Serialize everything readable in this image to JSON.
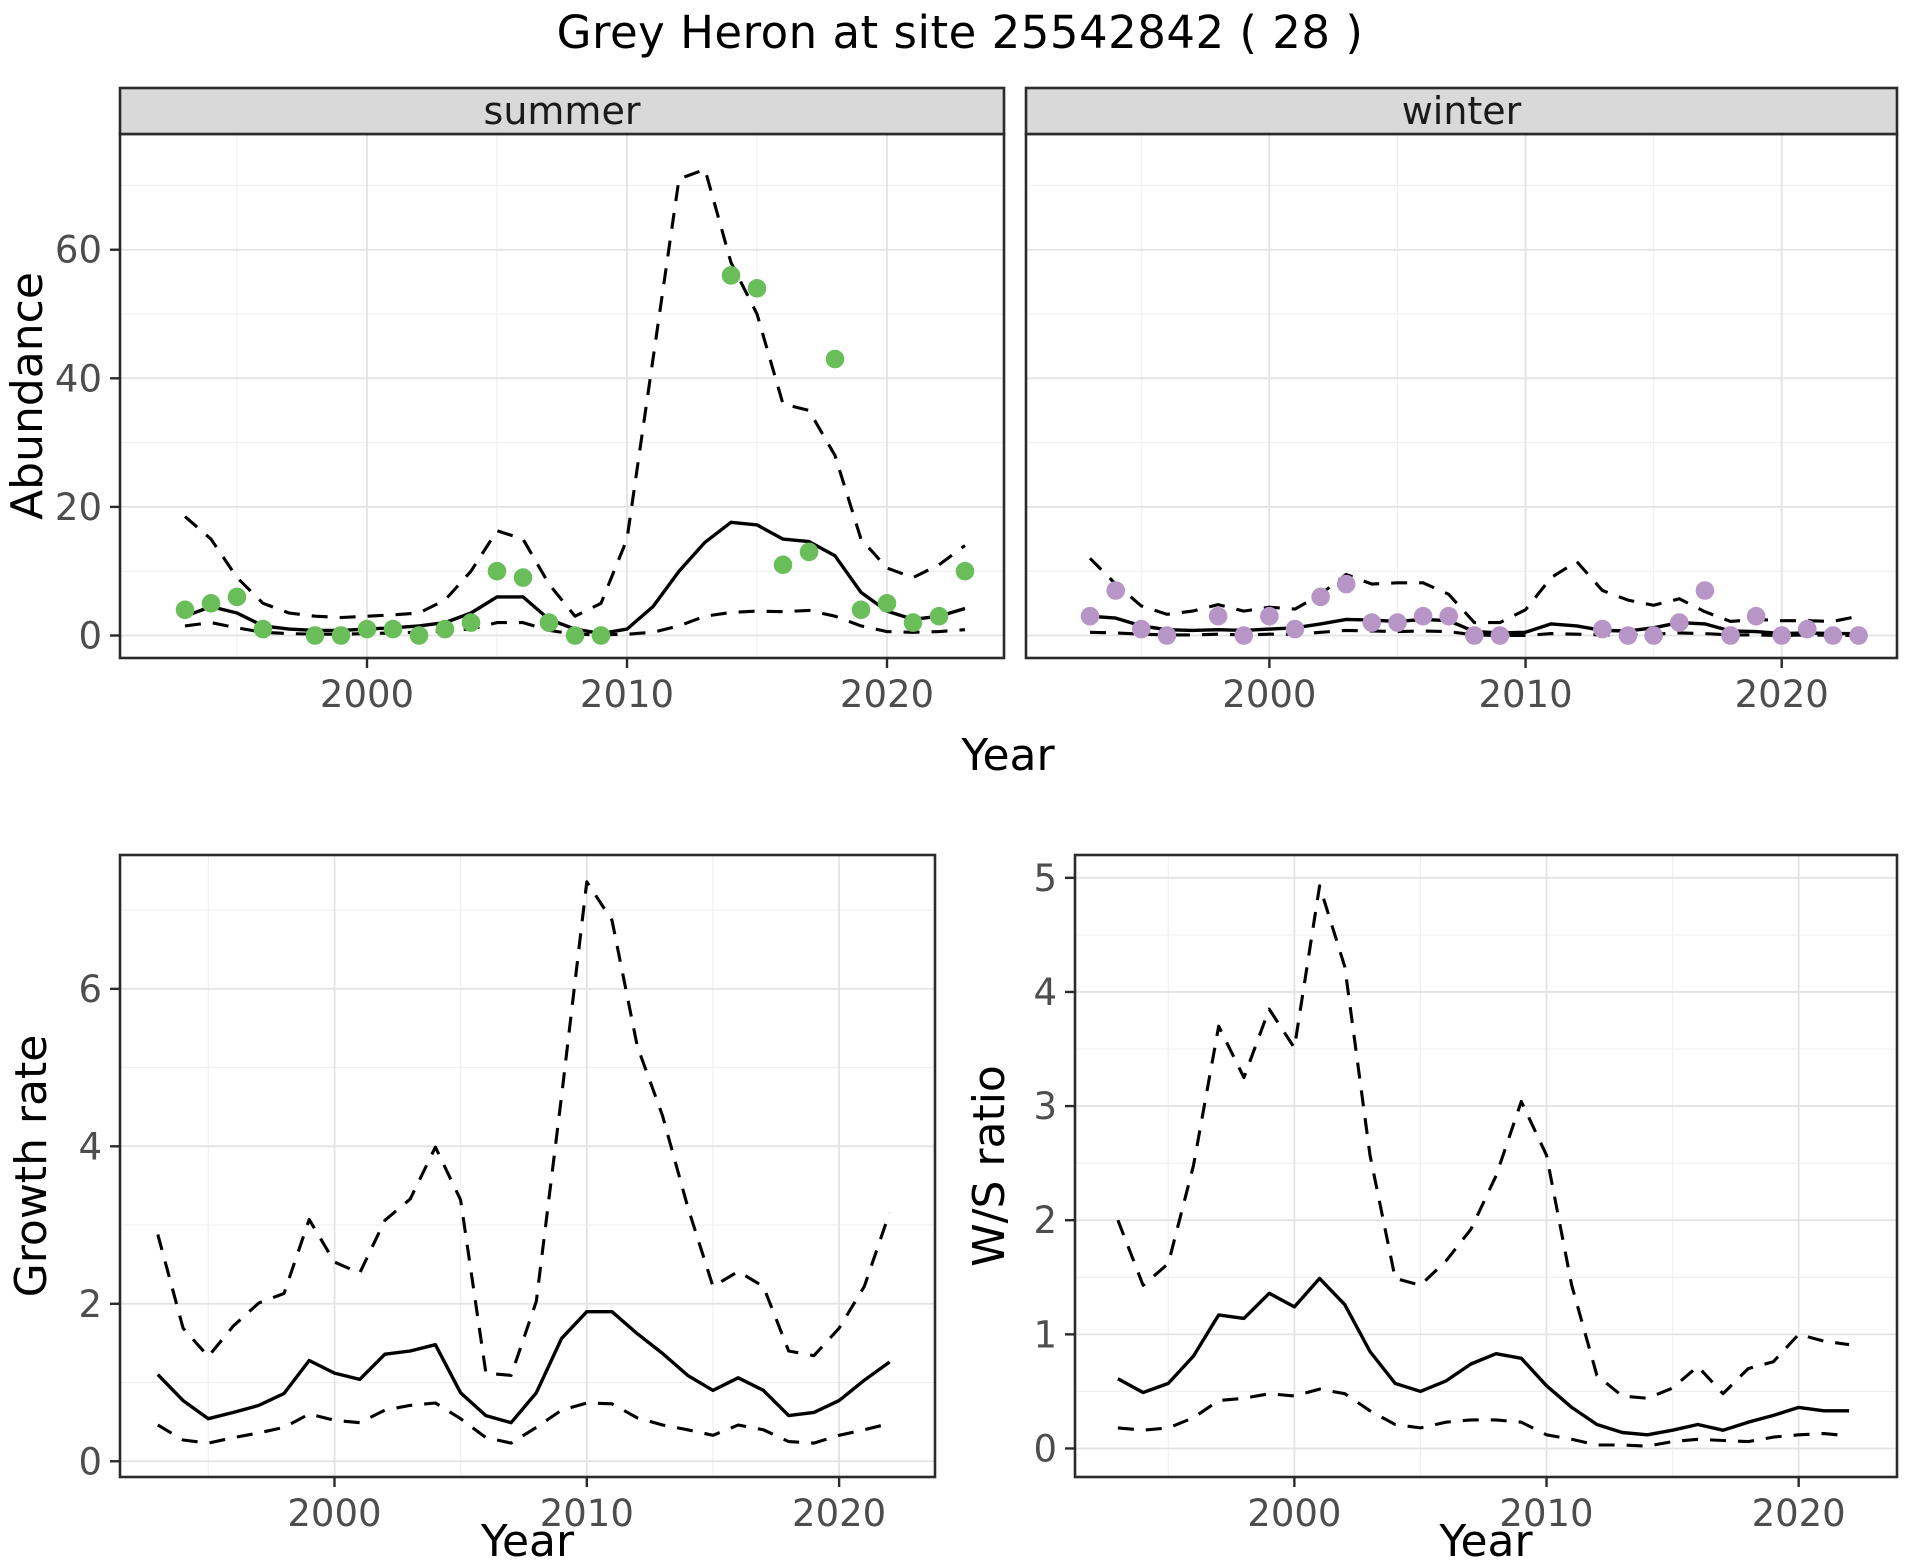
{
  "title": "Grey Heron at site 25542842 ( 28 )",
  "colors": {
    "summer_point": "#69BE5A",
    "winter_point": "#B795C6",
    "line": "#000000",
    "strip_bg": "#D9D9D9",
    "strip_text": "#1A1A1A",
    "grid_major": "#E3E3E3",
    "grid_minor": "#EFEFEF",
    "panel_border": "#2B2B2B",
    "tick_text": "#4D4D4D",
    "panel_bg": "#FFFFFF"
  },
  "chart_data": [
    {
      "id": "abundance_summer",
      "type": "line",
      "facet_label": "summer",
      "ylabel": "Abundance",
      "xlabel": "Year",
      "xlim": [
        1990.5,
        2024.5
      ],
      "ylim": [
        -3.5,
        78
      ],
      "xticks": [
        2000,
        2010,
        2020
      ],
      "xminor": [
        1995,
        2005,
        2015
      ],
      "yticks": [
        0,
        20,
        40,
        60
      ],
      "yminor": [
        10,
        30,
        50,
        70
      ],
      "grid": true,
      "legend_position": "none",
      "x": [
        1993,
        1994,
        1995,
        1996,
        1997,
        1998,
        1999,
        2000,
        2001,
        2002,
        2003,
        2004,
        2005,
        2006,
        2007,
        2008,
        2009,
        2010,
        2011,
        2012,
        2013,
        2014,
        2015,
        2016,
        2017,
        2018,
        2019,
        2020,
        2021,
        2022,
        2023
      ],
      "series": [
        {
          "name": "fit",
          "style": "solid",
          "values": [
            3,
            4.5,
            3.5,
            1.5,
            1,
            0.8,
            0.8,
            1,
            1.2,
            1.5,
            2,
            3.5,
            6,
            6,
            2.5,
            1,
            0.3,
            1,
            4.5,
            10,
            14.5,
            17.6,
            17.2,
            15,
            14.6,
            12.4,
            6.7,
            3.8,
            2.5,
            3,
            4.2
          ]
        },
        {
          "name": "upper_ci",
          "style": "dashed",
          "values": [
            18.5,
            15,
            9,
            5,
            3.5,
            3,
            2.8,
            3,
            3.2,
            3.5,
            5.5,
            10,
            16.3,
            15,
            8,
            3,
            5,
            15,
            43,
            71,
            72.5,
            58,
            50,
            36,
            35,
            28,
            15,
            10.5,
            9,
            11,
            14
          ]
        },
        {
          "name": "lower_ci",
          "style": "dashed",
          "values": [
            1.5,
            2,
            1.2,
            0.5,
            0.3,
            0.2,
            0.2,
            0.3,
            0.4,
            0.5,
            0.7,
            1,
            2,
            2,
            0.8,
            0.2,
            0.1,
            0.2,
            0.5,
            1.5,
            3,
            3.6,
            3.8,
            3.7,
            3.9,
            3,
            1.5,
            0.6,
            0.5,
            0.6,
            0.9
          ]
        }
      ],
      "points": {
        "x": [
          1993,
          1994,
          1995,
          1996,
          1998,
          1999,
          2000,
          2001,
          2002,
          2003,
          2004,
          2005,
          2006,
          2007,
          2008,
          2009,
          2014,
          2015,
          2016,
          2017,
          2018,
          2019,
          2020,
          2021,
          2022,
          2023
        ],
        "y": [
          4,
          5,
          6,
          1,
          0,
          0,
          1,
          1,
          0,
          1,
          2,
          10,
          9,
          2,
          0,
          0,
          56,
          54,
          11,
          13,
          43,
          4,
          5,
          2,
          3,
          10
        ],
        "color_key": "summer_point"
      }
    },
    {
      "id": "abundance_winter",
      "type": "line",
      "facet_label": "winter",
      "ylabel": "Abundance",
      "xlabel": "Year",
      "xlim": [
        1990.5,
        2024.5
      ],
      "ylim": [
        -3.5,
        78
      ],
      "xticks": [
        2000,
        2010,
        2020
      ],
      "xminor": [
        1995,
        2005,
        2015
      ],
      "yticks": [
        0,
        20,
        40,
        60
      ],
      "yminor": [
        10,
        30,
        50,
        70
      ],
      "grid": true,
      "legend_position": "none",
      "x": [
        1993,
        1994,
        1995,
        1996,
        1997,
        1998,
        1999,
        2000,
        2001,
        2002,
        2003,
        2004,
        2005,
        2006,
        2007,
        2008,
        2009,
        2010,
        2011,
        2012,
        2013,
        2014,
        2015,
        2016,
        2017,
        2018,
        2019,
        2020,
        2021,
        2022,
        2023
      ],
      "series": [
        {
          "name": "fit",
          "style": "solid",
          "values": [
            3,
            2.7,
            1.5,
            0.9,
            0.8,
            0.9,
            0.8,
            1,
            1.2,
            1.8,
            2.5,
            2.4,
            2.2,
            2.5,
            2.3,
            0.6,
            0.4,
            0.5,
            1.8,
            1.5,
            0.8,
            0.7,
            1.2,
            2,
            1.8,
            0.7,
            0.6,
            0.3,
            0.4,
            0.3,
            0.3
          ]
        },
        {
          "name": "upper_ci",
          "style": "dashed",
          "values": [
            12,
            8,
            4.6,
            3.3,
            3.8,
            4.8,
            3.8,
            4.4,
            4.1,
            6.4,
            9.5,
            8,
            8.2,
            8.2,
            6.4,
            2,
            2,
            4,
            9,
            11.5,
            7,
            5.5,
            4.7,
            5.7,
            3.7,
            2.2,
            2.5,
            2.3,
            2.3,
            2.2,
            3
          ]
        },
        {
          "name": "lower_ci",
          "style": "dashed",
          "values": [
            0.5,
            0.4,
            0.2,
            0.1,
            0.1,
            0.2,
            0.1,
            0.2,
            0.2,
            0.5,
            0.8,
            0.7,
            0.6,
            0.7,
            0.6,
            0.1,
            0,
            0,
            0.3,
            0.2,
            0.1,
            0.1,
            0.2,
            0.4,
            0.3,
            0.1,
            0.1,
            0,
            0.1,
            0,
            0
          ]
        }
      ],
      "points": {
        "x": [
          1993,
          1994,
          1995,
          1996,
          1998,
          1999,
          2000,
          2001,
          2002,
          2003,
          2004,
          2005,
          2006,
          2007,
          2008,
          2009,
          2013,
          2014,
          2015,
          2016,
          2017,
          2018,
          2019,
          2020,
          2021,
          2022,
          2023
        ],
        "y": [
          3,
          7,
          1,
          0,
          3,
          0,
          3,
          1,
          6,
          8,
          2,
          2,
          3,
          3,
          0,
          0,
          1,
          0,
          0,
          2,
          7,
          0,
          3,
          0,
          1,
          0,
          0
        ],
        "color_key": "winter_point"
      }
    },
    {
      "id": "growth_rate",
      "type": "line",
      "facet_label": "",
      "ylabel": "Growth rate",
      "xlabel": "Year",
      "xlim": [
        1991.5,
        2023.8
      ],
      "ylim": [
        -0.2,
        7.7
      ],
      "xticks": [
        2000,
        2010,
        2020
      ],
      "xminor": [
        1995,
        2005,
        2015
      ],
      "yticks": [
        0,
        2,
        4,
        6
      ],
      "yminor": [
        1,
        3,
        5,
        7
      ],
      "grid": true,
      "legend_position": "none",
      "x": [
        1993,
        1994,
        1995,
        1996,
        1997,
        1998,
        1999,
        2000,
        2001,
        2002,
        2003,
        2004,
        2005,
        2006,
        2007,
        2008,
        2009,
        2010,
        2011,
        2012,
        2013,
        2014,
        2015,
        2016,
        2017,
        2018,
        2019,
        2020,
        2021,
        2022
      ],
      "series": [
        {
          "name": "fit",
          "style": "solid",
          "values": [
            1.1,
            0.77,
            0.54,
            0.62,
            0.71,
            0.86,
            1.28,
            1.12,
            1.04,
            1.36,
            1.4,
            1.48,
            0.87,
            0.58,
            0.49,
            0.87,
            1.56,
            1.9,
            1.9,
            1.62,
            1.37,
            1.09,
            0.9,
            1.06,
            0.9,
            0.58,
            0.62,
            0.77,
            1.03,
            1.26
          ]
        },
        {
          "name": "upper_ci",
          "style": "dashed",
          "values": [
            2.88,
            1.69,
            1.33,
            1.72,
            2.01,
            2.13,
            3.07,
            2.53,
            2.39,
            3.06,
            3.33,
            3.99,
            3.32,
            1.12,
            1.09,
            2.03,
            4.64,
            7.36,
            6.87,
            5.27,
            4.39,
            3.23,
            2.22,
            2.41,
            2.22,
            1.4,
            1.34,
            1.69,
            2.22,
            3.16
          ]
        },
        {
          "name": "lower_ci",
          "style": "dashed",
          "values": [
            0.46,
            0.27,
            0.23,
            0.3,
            0.36,
            0.43,
            0.6,
            0.52,
            0.49,
            0.65,
            0.71,
            0.74,
            0.54,
            0.3,
            0.23,
            0.43,
            0.65,
            0.74,
            0.73,
            0.55,
            0.46,
            0.4,
            0.33,
            0.46,
            0.4,
            0.25,
            0.23,
            0.33,
            0.4,
            0.48
          ]
        }
      ],
      "points": null
    },
    {
      "id": "ws_ratio",
      "type": "line",
      "facet_label": "",
      "ylabel": "W/S ratio",
      "xlabel": "Year",
      "xlim": [
        1991.3,
        2023.9
      ],
      "ylim": [
        -0.25,
        5.2
      ],
      "xticks": [
        2000,
        2010,
        2020
      ],
      "xminor": [
        1995,
        2005,
        2015
      ],
      "yticks": [
        0,
        1,
        2,
        3,
        4,
        5
      ],
      "yminor": [
        0.5,
        1.5,
        2.5,
        3.5,
        4.5
      ],
      "grid": true,
      "legend_position": "none",
      "x": [
        1993,
        1994,
        1995,
        1996,
        1997,
        1998,
        1999,
        2000,
        2001,
        2002,
        2003,
        2004,
        2005,
        2006,
        2007,
        2008,
        2009,
        2010,
        2011,
        2012,
        2013,
        2014,
        2015,
        2016,
        2017,
        2018,
        2019,
        2020,
        2021,
        2022
      ],
      "series": [
        {
          "name": "fit",
          "style": "solid",
          "values": [
            0.61,
            0.49,
            0.57,
            0.81,
            1.17,
            1.14,
            1.36,
            1.24,
            1.49,
            1.26,
            0.85,
            0.57,
            0.5,
            0.59,
            0.74,
            0.83,
            0.79,
            0.55,
            0.36,
            0.21,
            0.14,
            0.12,
            0.16,
            0.21,
            0.16,
            0.23,
            0.29,
            0.36,
            0.33,
            0.33
          ]
        },
        {
          "name": "upper_ci",
          "style": "dashed",
          "values": [
            2.0,
            1.43,
            1.62,
            2.48,
            3.7,
            3.25,
            3.85,
            3.51,
            4.93,
            4.22,
            2.57,
            1.49,
            1.43,
            1.64,
            1.92,
            2.39,
            3.04,
            2.57,
            1.43,
            0.64,
            0.46,
            0.44,
            0.53,
            0.72,
            0.48,
            0.7,
            0.76,
            1.0,
            0.94,
            0.91
          ]
        },
        {
          "name": "lower_ci",
          "style": "dashed",
          "values": [
            0.18,
            0.16,
            0.18,
            0.27,
            0.42,
            0.44,
            0.48,
            0.46,
            0.52,
            0.48,
            0.33,
            0.21,
            0.18,
            0.23,
            0.25,
            0.25,
            0.23,
            0.12,
            0.08,
            0.03,
            0.03,
            0.02,
            0.06,
            0.08,
            0.07,
            0.06,
            0.1,
            0.12,
            0.13,
            0.11
          ]
        }
      ],
      "points": null
    }
  ]
}
